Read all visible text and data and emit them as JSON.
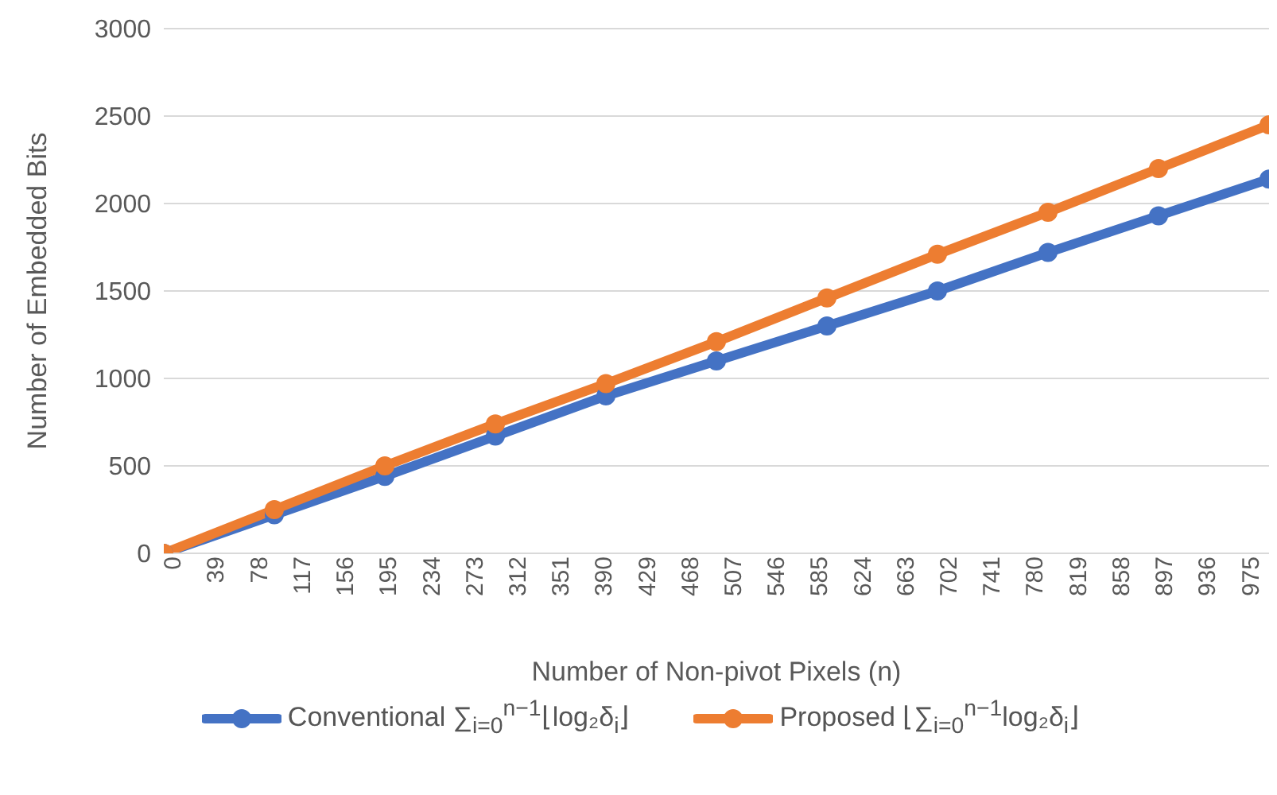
{
  "chart_data": {
    "type": "line",
    "xlabel": "Number of Non-pivot Pixels (n)",
    "ylabel": "Number of Embedded Bits",
    "x": [
      0,
      100,
      200,
      300,
      400,
      500,
      600,
      700,
      800,
      900,
      1000
    ],
    "series": [
      {
        "name": "Conventional ∑$_{i=0}$$^{n−1}$⌊log₂δ$_{i}$⌋",
        "color": "#4472c4",
        "values": [
          0,
          220,
          440,
          670,
          900,
          1100,
          1300,
          1500,
          1720,
          1930,
          2140
        ]
      },
      {
        "name": "Proposed ⌊∑$_{i=0}$$^{n−1}$log₂δ$_{i}$⌋",
        "color": "#ed7d31",
        "values": [
          0,
          250,
          500,
          740,
          970,
          1210,
          1460,
          1710,
          1950,
          2200,
          2450
        ]
      }
    ],
    "xlim": [
      0,
      1000
    ],
    "xticks": [
      0,
      39,
      78,
      117,
      156,
      195,
      234,
      273,
      312,
      351,
      390,
      429,
      468,
      507,
      546,
      585,
      624,
      663,
      702,
      741,
      780,
      819,
      858,
      897,
      936,
      975
    ],
    "ylim": [
      0,
      3000
    ],
    "yticks": [
      0,
      500,
      1000,
      1500,
      2000,
      2500,
      3000
    ],
    "grid": "y",
    "legend": "bottom",
    "marker": "circle",
    "line_style": "solid"
  }
}
